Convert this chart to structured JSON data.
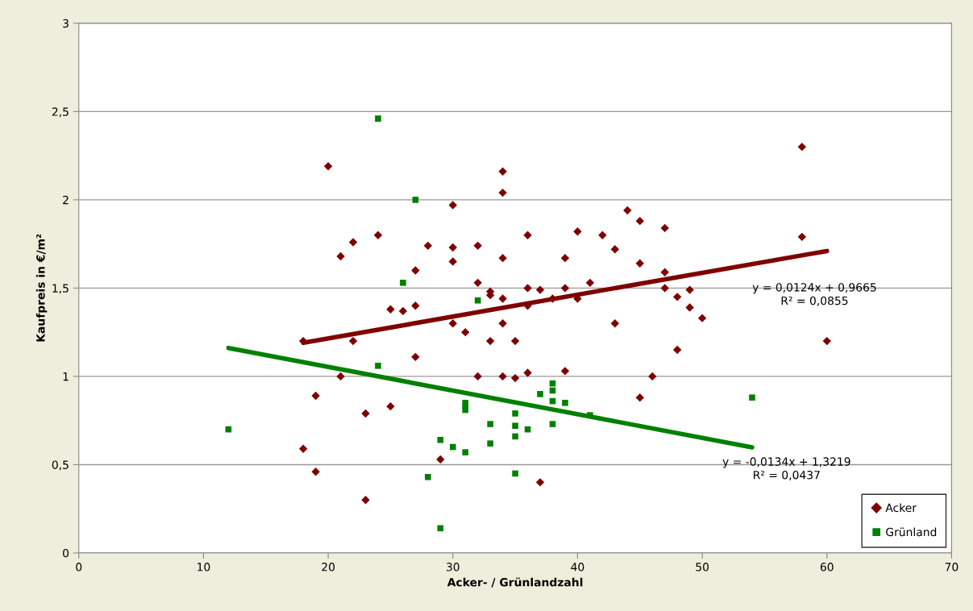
{
  "chart_data": {
    "type": "scatter",
    "xlabel": "Acker- / Grünlandzahl",
    "ylabel": "Kaufpreis in €/m²",
    "xlim": [
      0,
      70
    ],
    "xticks": [
      0,
      10,
      20,
      30,
      40,
      50,
      60,
      70
    ],
    "ylim": [
      0,
      3
    ],
    "yticks": [
      0,
      {
        "value": 0.5,
        "label": "0,5"
      },
      1,
      {
        "value": 1.5,
        "label": "1,5"
      },
      2,
      {
        "value": 2.5,
        "label": "2,5"
      },
      3
    ],
    "grid": "y",
    "legend": "bottom right",
    "series": [
      {
        "name": "Acker",
        "marker": "diamond",
        "color": "#7f0000",
        "x": [
          18,
          18,
          19,
          19,
          20,
          21,
          21,
          22,
          22,
          23,
          23,
          24,
          25,
          25,
          26,
          27,
          27,
          27,
          28,
          29,
          30,
          30,
          30,
          30,
          31,
          32,
          32,
          32,
          33,
          33,
          33,
          34,
          34,
          34,
          34,
          34,
          34,
          35,
          35,
          36,
          36,
          36,
          36,
          37,
          37,
          38,
          39,
          39,
          39,
          40,
          40,
          41,
          42,
          43,
          43,
          44,
          45,
          45,
          45,
          46,
          47,
          47,
          47,
          48,
          48,
          49,
          49,
          50,
          58,
          58,
          60
        ],
        "values": [
          1.2,
          0.59,
          0.89,
          0.46,
          2.19,
          1.68,
          1.0,
          1.76,
          1.2,
          0.79,
          0.3,
          1.8,
          1.38,
          0.83,
          1.37,
          1.6,
          1.4,
          1.11,
          1.74,
          0.53,
          1.97,
          1.73,
          1.65,
          1.3,
          1.25,
          1.74,
          1.53,
          1.0,
          1.48,
          1.46,
          1.2,
          2.16,
          2.04,
          1.67,
          1.44,
          1.3,
          1.0,
          1.2,
          0.99,
          1.8,
          1.5,
          1.4,
          1.02,
          1.49,
          0.4,
          1.44,
          1.67,
          1.5,
          1.03,
          1.82,
          1.44,
          1.53,
          1.8,
          1.72,
          1.3,
          1.94,
          1.88,
          1.64,
          0.88,
          1.0,
          1.84,
          1.59,
          1.5,
          1.45,
          1.15,
          1.49,
          1.39,
          1.33,
          2.3,
          1.79,
          1.2
        ]
      },
      {
        "name": "Grünland",
        "marker": "square",
        "color": "#008000",
        "x": [
          12,
          24,
          24,
          26,
          27,
          28,
          29,
          29,
          30,
          31,
          31,
          31,
          31,
          32,
          33,
          33,
          35,
          35,
          35,
          35,
          36,
          37,
          38,
          38,
          38,
          38,
          39,
          41,
          54
        ],
        "values": [
          0.7,
          2.46,
          1.06,
          1.53,
          2.0,
          0.43,
          0.64,
          0.14,
          0.6,
          0.85,
          0.83,
          0.81,
          0.57,
          1.43,
          0.73,
          0.62,
          0.79,
          0.72,
          0.66,
          0.45,
          0.7,
          0.9,
          0.96,
          0.92,
          0.86,
          0.73,
          0.85,
          0.78,
          0.88
        ]
      },
      {
        "type": "line",
        "marker": "none",
        "color": "#7f0000",
        "x": [
          18,
          60
        ],
        "values": [
          1.19,
          1.71
        ]
      },
      {
        "type": "line",
        "marker": "none",
        "color": "#008000",
        "x": [
          12,
          54
        ],
        "values": [
          1.161,
          0.598
        ]
      }
    ],
    "annotations": [
      "y = 0,0124x + 0,9665\nR² = 0,0855",
      "y = -0,0134x + 1,3219\nR² = 0,0437"
    ]
  }
}
